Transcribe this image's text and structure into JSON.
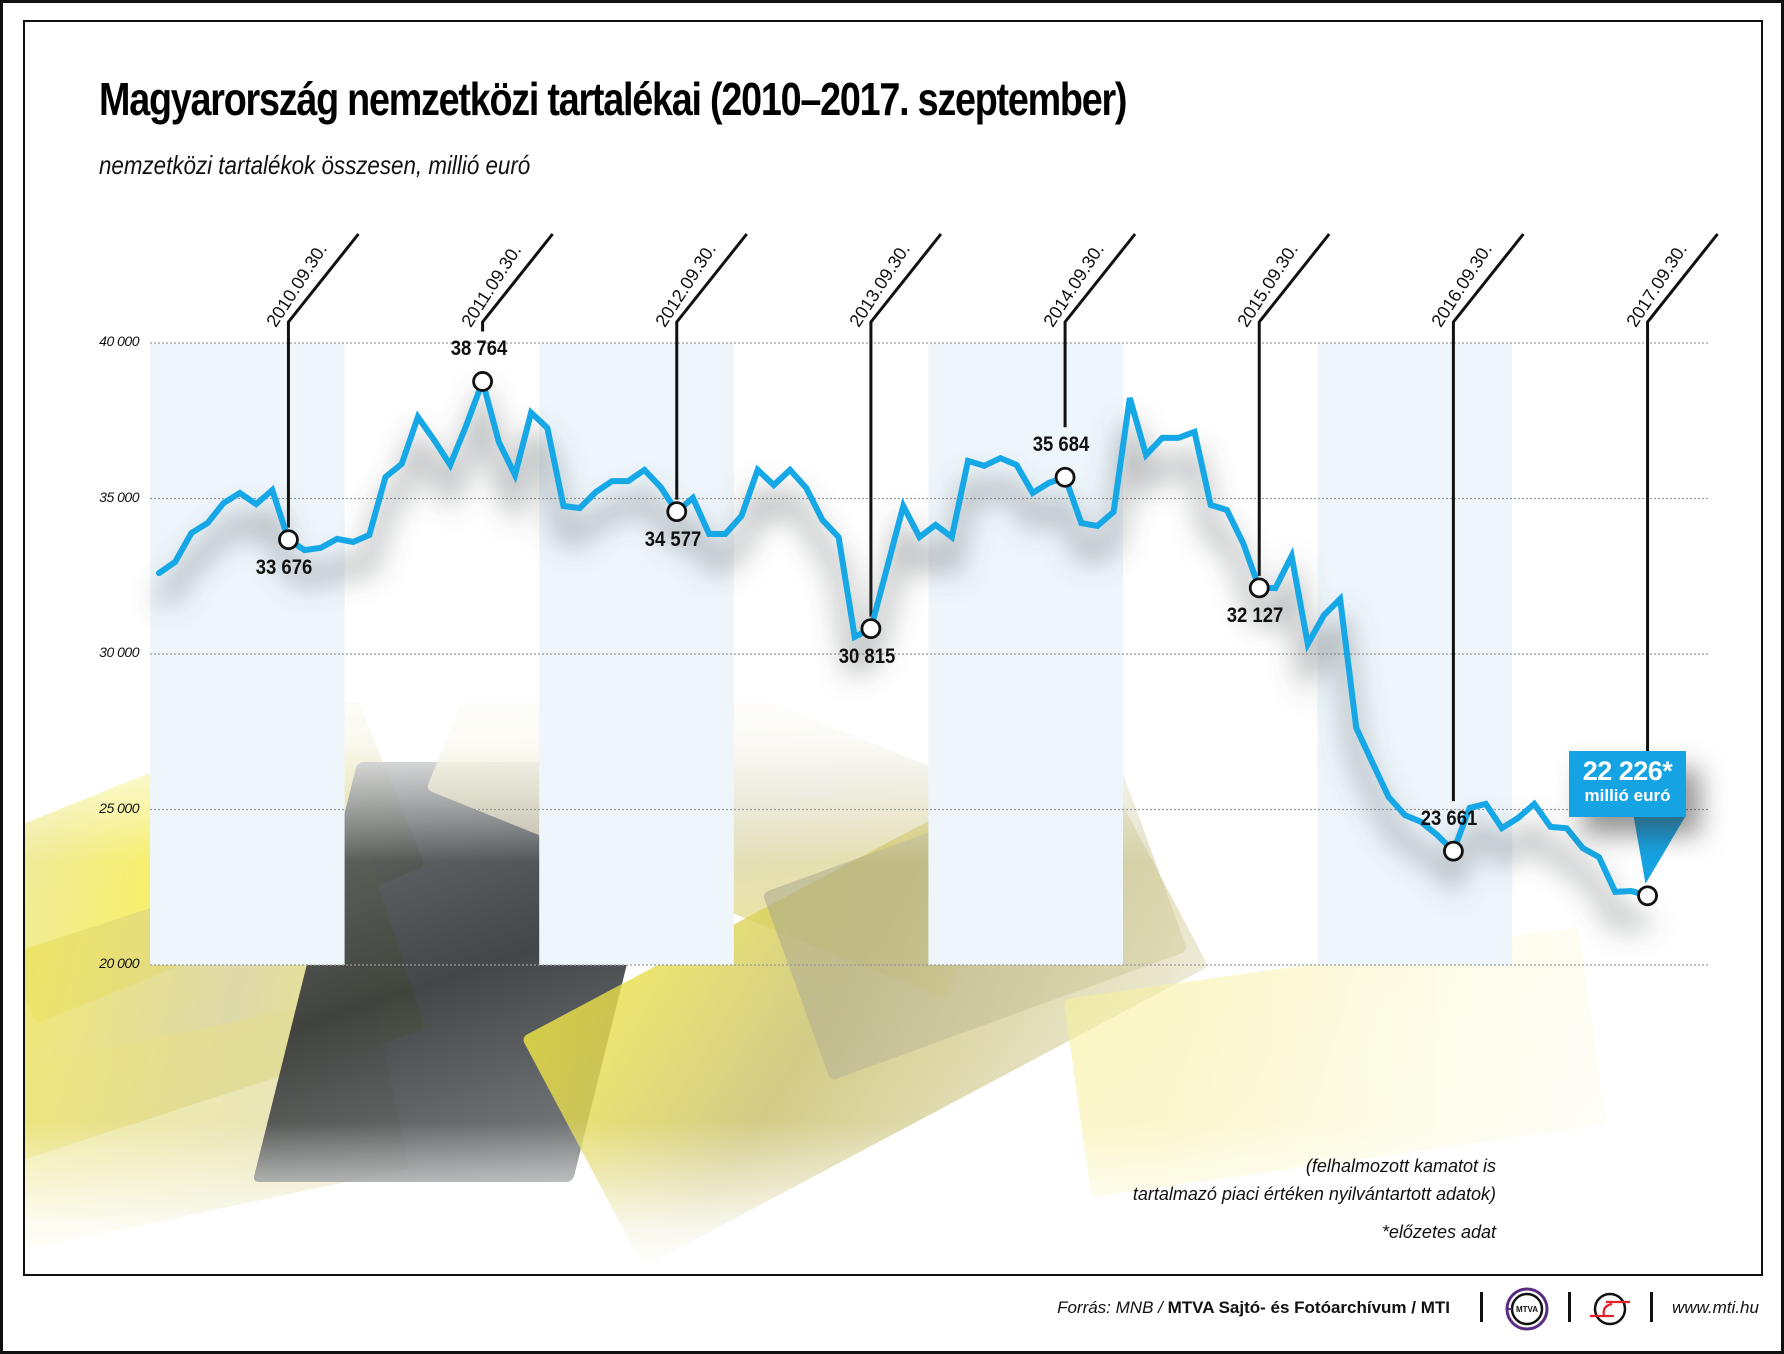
{
  "header": {
    "title": "Magyarország nemzetközi tartalékai (2010–2017. szeptember)",
    "subtitle": "nemzetközi tartalékok összesen, millió euró"
  },
  "colors": {
    "line": "#16a8e6",
    "callout": "#15a3e3",
    "band": "#eef6fc",
    "grid": "#9a9a9a"
  },
  "axis": {
    "y_ticks": [
      {
        "label": "40 000",
        "value": 40000
      },
      {
        "label": "35 000",
        "value": 35000
      },
      {
        "label": "30 000",
        "value": 30000
      },
      {
        "label": "25 000",
        "value": 25000
      },
      {
        "label": "20 000",
        "value": 20000
      }
    ]
  },
  "markers": [
    {
      "date": "2010.09.30.",
      "value_label": "33 676",
      "value": 33676,
      "index": 8,
      "label_pos": "below"
    },
    {
      "date": "2011.09.30.",
      "value_label": "38 764",
      "value": 38764,
      "index": 20,
      "label_pos": "above"
    },
    {
      "date": "2012.09.30.",
      "value_label": "34 577",
      "value": 34577,
      "index": 32,
      "label_pos": "below"
    },
    {
      "date": "2013.09.30.",
      "value_label": "30 815",
      "value": 30815,
      "index": 44,
      "label_pos": "below"
    },
    {
      "date": "2014.09.30.",
      "value_label": "35 684",
      "value": 35684,
      "index": 56,
      "label_pos": "above"
    },
    {
      "date": "2015.09.30.",
      "value_label": "32 127",
      "value": 32127,
      "index": 68,
      "label_pos": "below"
    },
    {
      "date": "2016.09.30.",
      "value_label": "23 661",
      "value": 23661,
      "index": 80,
      "label_pos": "above"
    },
    {
      "date": "2017.09.30.",
      "value_label": "",
      "value": 22226,
      "index": 92,
      "label_pos": "callout"
    }
  ],
  "callout": {
    "value": "22 226*",
    "unit": "millió euró"
  },
  "notes": {
    "line1": "(felhalmozott kamatot is",
    "line2": "tartalmazó piaci értéken nyilvántartott adatok)",
    "footnote": "*előzetes adat"
  },
  "footer": {
    "source_prefix": "Forrás: MNB / ",
    "source_bold": "MTVA Sajtó- és Fotóarchívum / MTI",
    "logo1_text": "MTVA",
    "url": "www.mti.hu"
  },
  "chart_data": {
    "type": "line",
    "title": "Magyarország nemzetközi tartalékai (2010–2017. szeptember)",
    "subtitle": "nemzetközi tartalékok összesen, millió euró",
    "xlabel": "",
    "ylabel": "millió euró",
    "ylim": [
      20000,
      40000
    ],
    "grid": "horizontal dotted",
    "legend": "none",
    "x_start": "2010-01",
    "x_end": "2017-09",
    "frequency": "monthly",
    "series": [
      {
        "name": "nemzetközi tartalékok összesen",
        "x": [
          "2010-01",
          "2010-02",
          "2010-03",
          "2010-04",
          "2010-05",
          "2010-06",
          "2010-07",
          "2010-08",
          "2010-09",
          "2010-10",
          "2010-11",
          "2010-12",
          "2011-01",
          "2011-02",
          "2011-03",
          "2011-04",
          "2011-05",
          "2011-06",
          "2011-07",
          "2011-08",
          "2011-09",
          "2011-10",
          "2011-11",
          "2011-12",
          "2012-01",
          "2012-02",
          "2012-03",
          "2012-04",
          "2012-05",
          "2012-06",
          "2012-07",
          "2012-08",
          "2012-09",
          "2012-10",
          "2012-11",
          "2012-12",
          "2013-01",
          "2013-02",
          "2013-03",
          "2013-04",
          "2013-05",
          "2013-06",
          "2013-07",
          "2013-08",
          "2013-09",
          "2013-10",
          "2013-11",
          "2013-12",
          "2014-01",
          "2014-02",
          "2014-03",
          "2014-04",
          "2014-05",
          "2014-06",
          "2014-07",
          "2014-08",
          "2014-09",
          "2014-10",
          "2014-11",
          "2014-12",
          "2015-01",
          "2015-02",
          "2015-03",
          "2015-04",
          "2015-05",
          "2015-06",
          "2015-07",
          "2015-08",
          "2015-09",
          "2015-10",
          "2015-11",
          "2015-12",
          "2016-01",
          "2016-02",
          "2016-03",
          "2016-04",
          "2016-05",
          "2016-06",
          "2016-07",
          "2016-08",
          "2016-09",
          "2016-10",
          "2016-11",
          "2016-12",
          "2017-01",
          "2017-02",
          "2017-03",
          "2017-04",
          "2017-05",
          "2017-06",
          "2017-07",
          "2017-08",
          "2017-09"
        ],
        "values": [
          32600,
          32960,
          33890,
          34210,
          34860,
          35180,
          34820,
          35270,
          33676,
          33340,
          33410,
          33700,
          33600,
          33830,
          35690,
          36110,
          37620,
          36880,
          36080,
          37360,
          38764,
          36820,
          35760,
          37760,
          37270,
          34760,
          34690,
          35210,
          35560,
          35560,
          35920,
          35370,
          34577,
          35020,
          33860,
          33860,
          34440,
          35920,
          35430,
          35920,
          35340,
          34310,
          33760,
          30550,
          30815,
          32780,
          34760,
          33760,
          34150,
          33760,
          36210,
          36050,
          36300,
          36080,
          35180,
          35500,
          35684,
          34210,
          34120,
          34570,
          38230,
          36400,
          36950,
          36950,
          37140,
          34790,
          34630,
          33570,
          32127,
          32120,
          33150,
          30320,
          31250,
          31770,
          27620,
          26500,
          25400,
          24820,
          24600,
          24180,
          23661,
          25050,
          25180,
          24400,
          24730,
          25180,
          24440,
          24400,
          23760,
          23470,
          22350,
          22380,
          22226
        ]
      }
    ],
    "annotations": [
      "2010.09.30.: 33 676",
      "2011.09.30.: 38 764",
      "2012.09.30.: 34 577",
      "2013.09.30.: 30 815",
      "2014.09.30.: 35 684",
      "2015.09.30.: 32 127",
      "2016.09.30.: 23 661",
      "2017.09.30.: 22 226* millió euró",
      "(felhalmozott kamatot is tartalmazó piaci értéken nyilvántartott adatok)",
      "*előzetes adat"
    ]
  }
}
